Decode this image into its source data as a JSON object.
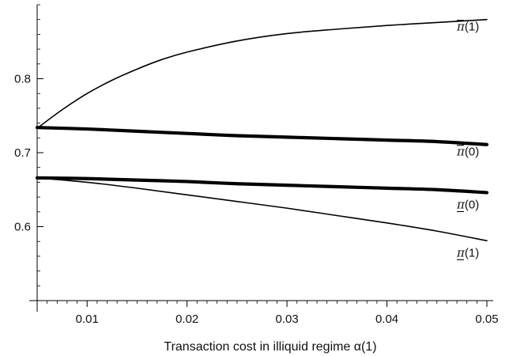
{
  "chart_data": {
    "type": "line",
    "title": "",
    "xlabel": "Transaction cost in illiquid regime α(1)",
    "ylabel": "",
    "xlim": [
      0.005,
      0.05
    ],
    "ylim": [
      0.5,
      0.9
    ],
    "xticks": [
      0.01,
      0.02,
      0.03,
      0.04,
      0.05
    ],
    "xtick_labels": [
      "0.01",
      "0.02",
      "0.03",
      "0.04",
      "0.05"
    ],
    "yticks": [
      0.6,
      0.7,
      0.8
    ],
    "ytick_labels": [
      "0.6",
      "0.7",
      "0.8"
    ],
    "grid": false,
    "series": [
      {
        "name": "π̄(1)",
        "label_main": "π",
        "label_arg": "(1)",
        "decoration": "bar",
        "weight": "thin",
        "x": [
          0.005,
          0.0075,
          0.01,
          0.0125,
          0.015,
          0.0175,
          0.02,
          0.025,
          0.03,
          0.035,
          0.04,
          0.045,
          0.05
        ],
        "y": [
          0.733,
          0.758,
          0.78,
          0.798,
          0.813,
          0.826,
          0.836,
          0.851,
          0.861,
          0.867,
          0.872,
          0.876,
          0.88
        ]
      },
      {
        "name": "π̄(0)",
        "label_main": "π",
        "label_arg": "(0)",
        "decoration": "bar",
        "weight": "thick",
        "x": [
          0.005,
          0.01,
          0.015,
          0.02,
          0.025,
          0.03,
          0.035,
          0.04,
          0.045,
          0.05
        ],
        "y": [
          0.734,
          0.732,
          0.729,
          0.726,
          0.723,
          0.721,
          0.719,
          0.717,
          0.715,
          0.711
        ]
      },
      {
        "name": "π̲(0)",
        "label_main": "π",
        "label_arg": "(0)",
        "decoration": "underline",
        "weight": "thick",
        "x": [
          0.005,
          0.01,
          0.015,
          0.02,
          0.025,
          0.03,
          0.035,
          0.04,
          0.045,
          0.05
        ],
        "y": [
          0.666,
          0.665,
          0.663,
          0.661,
          0.658,
          0.656,
          0.654,
          0.652,
          0.65,
          0.646
        ]
      },
      {
        "name": "π̲(1)",
        "label_main": "π",
        "label_arg": "(1)",
        "decoration": "underline",
        "weight": "thin",
        "x": [
          0.005,
          0.01,
          0.015,
          0.02,
          0.025,
          0.03,
          0.035,
          0.04,
          0.045,
          0.05
        ],
        "y": [
          0.666,
          0.66,
          0.652,
          0.643,
          0.634,
          0.625,
          0.615,
          0.605,
          0.594,
          0.581
        ]
      }
    ]
  }
}
